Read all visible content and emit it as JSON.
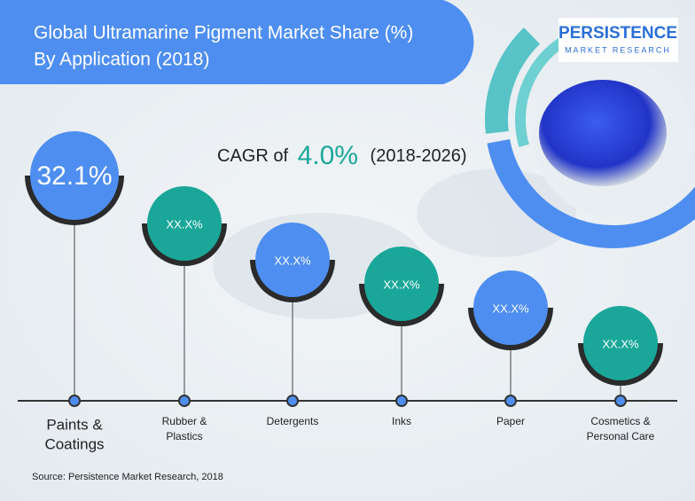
{
  "header": {
    "title_lines": [
      "Global Ultramarine Pigment Market Share (%)",
      "By Application (2018)"
    ]
  },
  "logo": {
    "name": "PERSISTENCE",
    "tagline": "MARKET RESEARCH"
  },
  "cagr": {
    "prefix": "CAGR of",
    "value": "4.0%",
    "period": "(2018-2026)"
  },
  "items": [
    {
      "value": "32.1%",
      "label_lines": [
        "Paints &",
        "Coatings"
      ]
    },
    {
      "value": "XX.X%",
      "label_lines": [
        "Rubber &",
        "Plastics"
      ]
    },
    {
      "value": "XX.X%",
      "label_lines": [
        "Detergents"
      ]
    },
    {
      "value": "XX.X%",
      "label_lines": [
        "Inks"
      ]
    },
    {
      "value": "XX.X%",
      "label_lines": [
        "Paper"
      ]
    },
    {
      "value": "XX.X%",
      "label_lines": [
        "Cosmetics &",
        "Personal Care"
      ]
    }
  ],
  "source": "Source: Persistence Market Research, 2018"
}
